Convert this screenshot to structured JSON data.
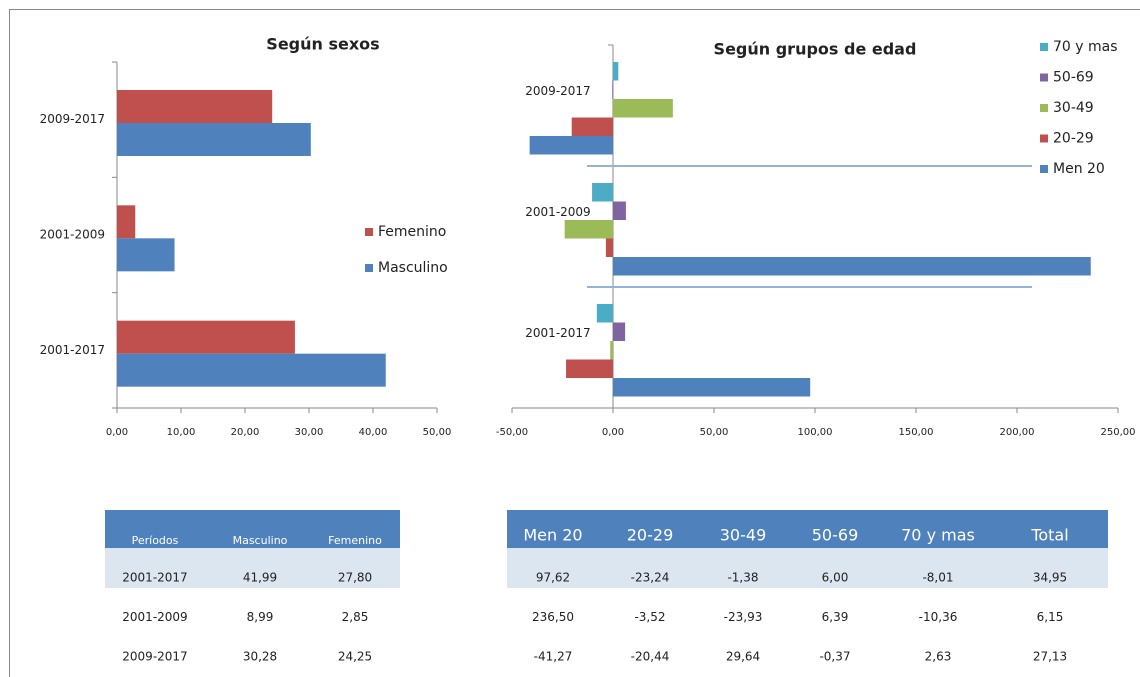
{
  "chart_data": [
    {
      "type": "hbar",
      "title": "Según sexos",
      "categories": [
        "2009-2017",
        "2001-2009",
        "2001-2017"
      ],
      "series": [
        {
          "name": "Femenino",
          "color": "#c0504d",
          "values": [
            24.25,
            2.85,
            27.8
          ]
        },
        {
          "name": "Masculino",
          "color": "#4f81bd",
          "values": [
            30.28,
            8.99,
            41.99
          ]
        }
      ],
      "xlim": [
        0,
        50
      ],
      "xticks": [
        {
          "value": 0,
          "label": "0,00"
        },
        {
          "value": 10,
          "label": "10,00"
        },
        {
          "value": 20,
          "label": "20,00"
        },
        {
          "value": 30,
          "label": "30,00"
        },
        {
          "value": 40,
          "label": "40,00"
        },
        {
          "value": 50,
          "label": "50,00"
        }
      ],
      "legend": "right"
    },
    {
      "type": "hbar",
      "title": "Según grupos de edad",
      "categories": [
        "2009-2017",
        "2001-2009",
        "2001-2017"
      ],
      "series": [
        {
          "name": "70 y mas",
          "color": "#4bacc6",
          "values": [
            2.63,
            -10.36,
            -8.01
          ]
        },
        {
          "name": "50-69",
          "color": "#8064a2",
          "values": [
            -0.37,
            6.39,
            6.0
          ]
        },
        {
          "name": "30-49",
          "color": "#9bbb59",
          "values": [
            29.64,
            -23.93,
            -1.38
          ]
        },
        {
          "name": "20-29",
          "color": "#c0504d",
          "values": [
            -20.44,
            -3.52,
            -23.24
          ]
        },
        {
          "name": "Men 20",
          "color": "#4f81bd",
          "values": [
            -41.27,
            236.5,
            97.62
          ]
        }
      ],
      "xlim": [
        -50,
        250
      ],
      "xticks": [
        {
          "value": -50,
          "label": "-50,00"
        },
        {
          "value": 0,
          "label": "0,00"
        },
        {
          "value": 50,
          "label": "50,00"
        },
        {
          "value": 100,
          "label": "100,00"
        },
        {
          "value": 150,
          "label": "150,00"
        },
        {
          "value": 200,
          "label": "200,00"
        },
        {
          "value": 250,
          "label": "250,00"
        }
      ],
      "legend": "top-right"
    }
  ],
  "tables": [
    {
      "header": [
        "Períodos",
        "Masculino",
        "Femenino"
      ],
      "rows": [
        [
          "2001-2017",
          "41,99",
          "27,80"
        ],
        [
          "2001-2009",
          "8,99",
          "2,85"
        ],
        [
          "2009-2017",
          "30,28",
          "24,25"
        ]
      ]
    },
    {
      "header": [
        "Men 20",
        "20-29",
        "30-49",
        "50-69",
        "70 y mas",
        "Total"
      ],
      "rows": [
        [
          "97,62",
          "-23,24",
          "-1,38",
          "6,00",
          "-8,01",
          "34,95"
        ],
        [
          "236,50",
          "-3,52",
          "-23,93",
          "6,39",
          "-10,36",
          "6,15"
        ],
        [
          "-41,27",
          "-20,44",
          "29,64",
          "-0,37",
          "2,63",
          "27,13"
        ]
      ]
    }
  ]
}
